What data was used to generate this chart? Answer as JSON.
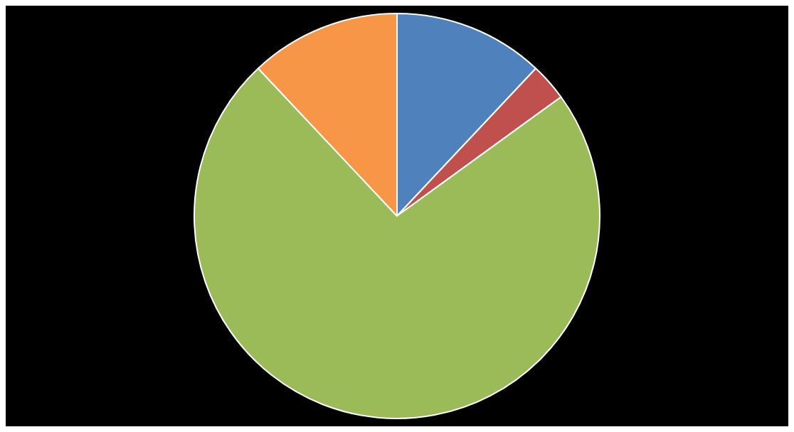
{
  "chart_data": {
    "type": "pie",
    "categories": [
      null,
      null,
      null,
      null
    ],
    "values": [
      12,
      3,
      73,
      12
    ],
    "colors": [
      "#4f81bd",
      "#c0504d",
      "#9bbb59",
      "#f79646"
    ],
    "legend": false
  }
}
